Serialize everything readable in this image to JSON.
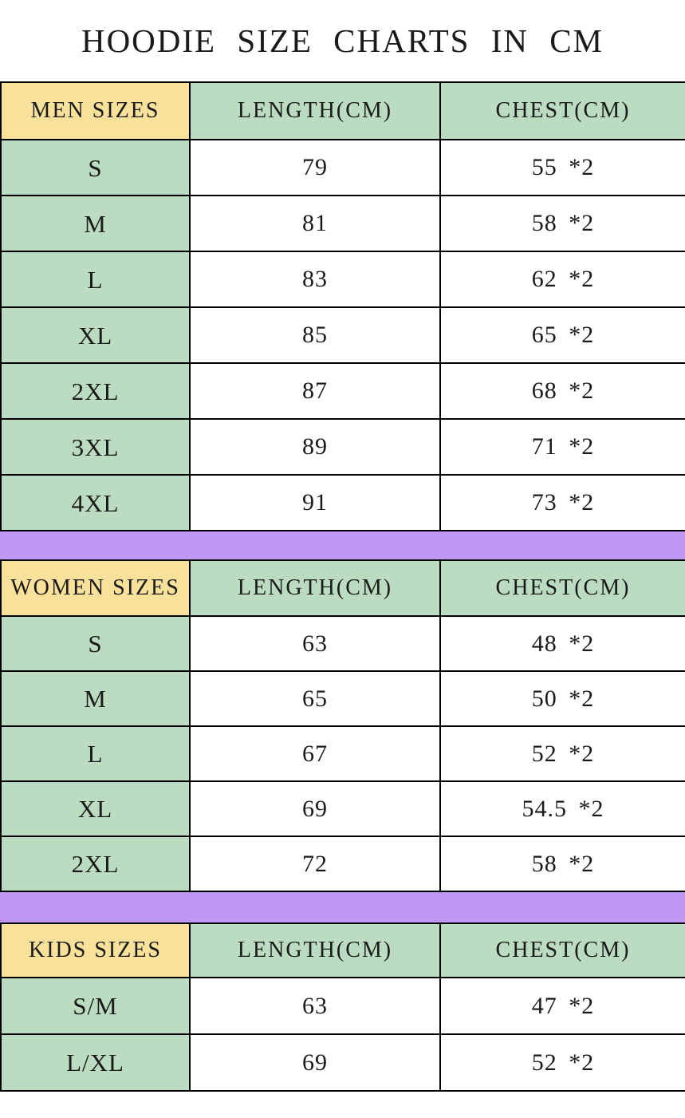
{
  "title": "HOODIE SIZE CHARTS IN CM",
  "colors": {
    "header_yellow": "#F8E19B",
    "cell_green": "#BBDCC1",
    "divider_purple": "#BE98F2",
    "border": "#000000",
    "background": "#FFFFFF"
  },
  "chart_data": [
    {
      "type": "table",
      "title": "HOODIE SIZE CHARTS IN CM",
      "section": "MEN SIZES",
      "columns": [
        "MEN SIZES",
        "LENGTH(CM)",
        "CHEST(CM)"
      ],
      "rows": [
        [
          "S",
          "79",
          "55 *2"
        ],
        [
          "M",
          "81",
          "58 *2"
        ],
        [
          "L",
          "83",
          "62 *2"
        ],
        [
          "XL",
          "85",
          "65 *2"
        ],
        [
          "2XL",
          "87",
          "68 *2"
        ],
        [
          "3XL",
          "89",
          "71 *2"
        ],
        [
          "4XL",
          "91",
          "73 *2"
        ]
      ]
    },
    {
      "type": "table",
      "section": "WOMEN SIZES",
      "columns": [
        "WOMEN SIZES",
        "LENGTH(CM)",
        "CHEST(CM)"
      ],
      "rows": [
        [
          "S",
          "63",
          "48 *2"
        ],
        [
          "M",
          "65",
          "50 *2"
        ],
        [
          "L",
          "67",
          "52 *2"
        ],
        [
          "XL",
          "69",
          "54.5 *2"
        ],
        [
          "2XL",
          "72",
          "58 *2"
        ]
      ]
    },
    {
      "type": "table",
      "section": "KIDS SIZES",
      "columns": [
        "KIDS SIZES",
        "LENGTH(CM)",
        "CHEST(CM)"
      ],
      "rows": [
        [
          "S/M",
          "63",
          "47 *2"
        ],
        [
          "L/XL",
          "69",
          "52 *2"
        ]
      ]
    }
  ]
}
